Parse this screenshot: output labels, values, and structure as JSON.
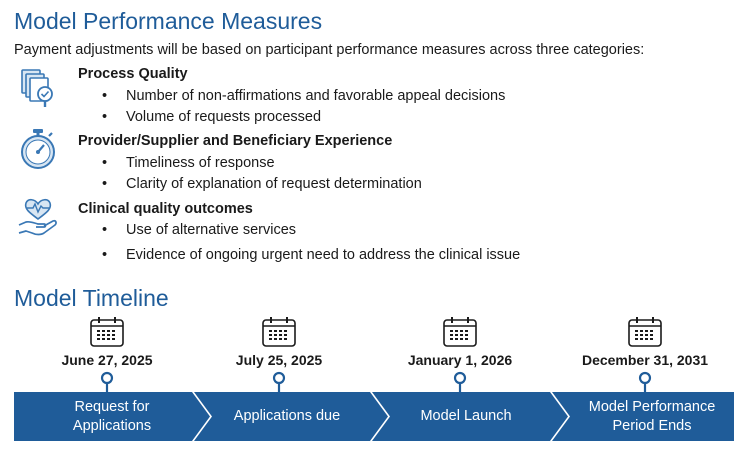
{
  "header": {
    "title": "Model Performance Measures",
    "intro": "Payment adjustments will be based on participant performance measures across three categories:"
  },
  "categories": [
    {
      "icon": "documents-magnifier-icon",
      "heading": "Process Quality",
      "bullets": [
        "Number of non-affirmations and favorable appeal decisions",
        "Volume of requests processed"
      ]
    },
    {
      "icon": "stopwatch-icon",
      "heading": "Provider/Supplier and Beneficiary Experience",
      "bullets": [
        "Timeliness of response",
        "Clarity of explanation of request determination"
      ]
    },
    {
      "icon": "hand-heart-icon",
      "heading": "Clinical quality outcomes",
      "bullets": [
        "Use of alternative services",
        "Evidence of ongoing urgent need to address the clinical issue"
      ]
    }
  ],
  "timeline": {
    "title": "Model Timeline",
    "milestones": [
      {
        "date": "June 27, 2025",
        "label_line1": "Request for",
        "label_line2": "Applications"
      },
      {
        "date": "July 25, 2025",
        "label_line1": "Applications due",
        "label_line2": ""
      },
      {
        "date": "January 1, 2026",
        "label_line1": "Model Launch",
        "label_line2": ""
      },
      {
        "date": "December 31, 2031",
        "label_line1": "Model Performance",
        "label_line2": "Period Ends"
      }
    ]
  },
  "colors": {
    "brand_blue": "#1f5c99",
    "bar_blue": "#1f5c99",
    "icon_blue": "#3a78b5",
    "icon_fill": "#d8e6f3"
  }
}
